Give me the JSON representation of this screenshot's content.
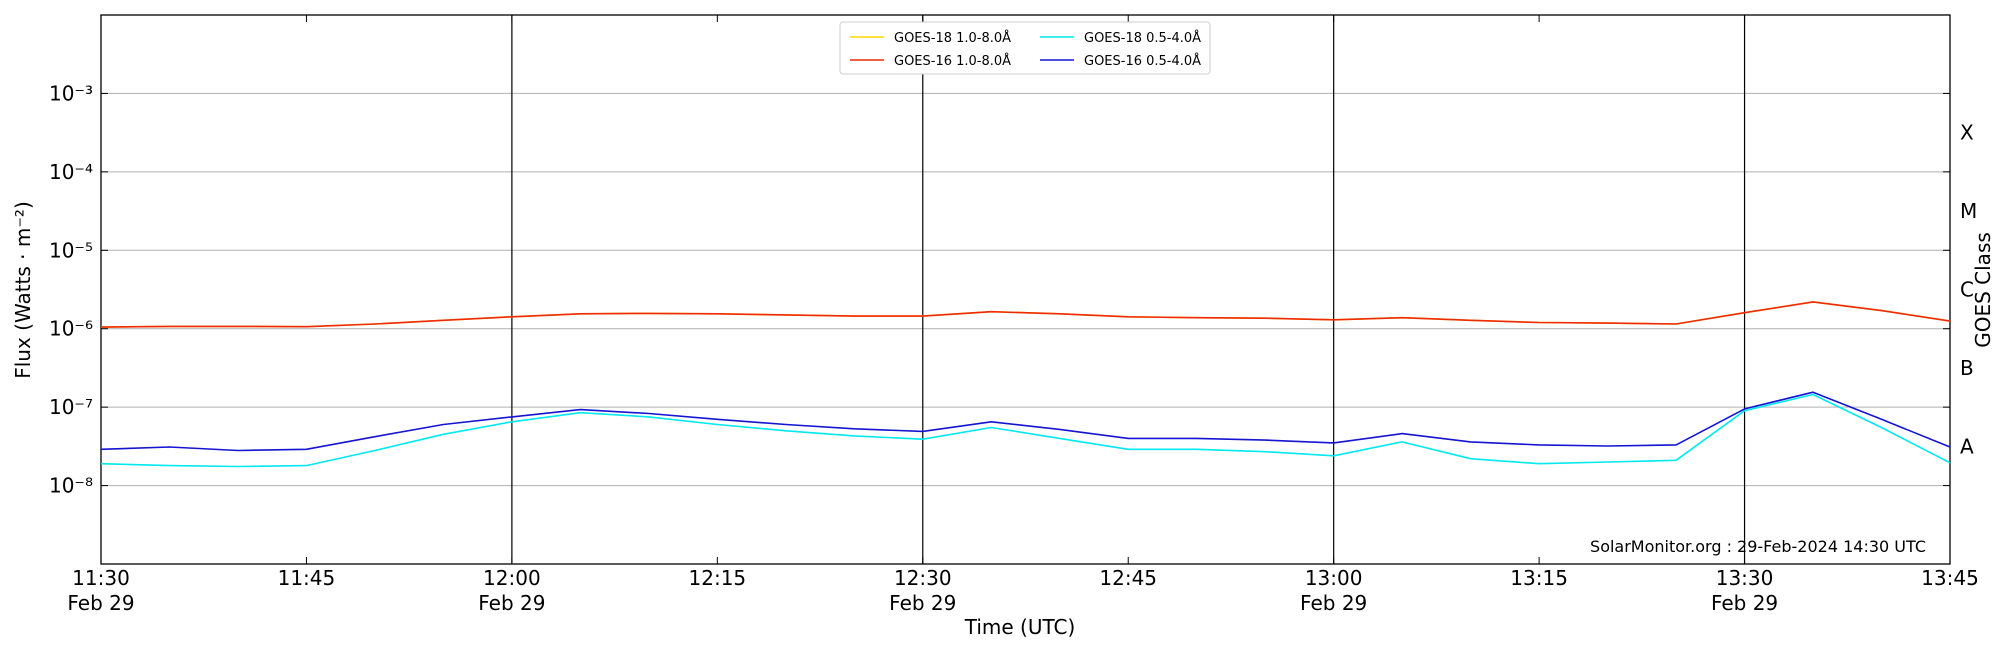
{
  "chart_data": {
    "type": "line",
    "xlabel": "Time (UTC)",
    "ylabel": "Flux (Watts · m⁻²)",
    "y2label": "GOES Class",
    "annotation": "SolarMonitor.org : 29-Feb-2024 14:30 UTC",
    "log_y": true,
    "grid": true,
    "legend": "upper center",
    "x": [
      "11:30",
      "11:35",
      "11:40",
      "11:45",
      "11:50",
      "11:55",
      "12:00",
      "12:05",
      "12:10",
      "12:15",
      "12:20",
      "12:25",
      "12:30",
      "12:35",
      "12:40",
      "12:45",
      "12:50",
      "12:55",
      "13:00",
      "13:05",
      "13:10",
      "13:15",
      "13:20",
      "13:25",
      "13:30",
      "13:35",
      "13:40",
      "13:45"
    ],
    "xlim": [
      "11:30",
      "13:45"
    ],
    "xticks": [
      {
        "value": "11:30",
        "label": "11:30\nFeb 29"
      },
      "11:45",
      {
        "value": "12:00",
        "label": "12:00\nFeb 29"
      },
      "12:15",
      {
        "value": "12:30",
        "label": "12:30\nFeb 29"
      },
      "12:45",
      {
        "value": "13:00",
        "label": "13:00\nFeb 29"
      },
      "13:15",
      {
        "value": "13:30",
        "label": "13:30\nFeb 29"
      },
      "13:45"
    ],
    "vlines": [
      "12:00",
      "12:30",
      "13:00",
      "13:30"
    ],
    "ylim": [
      1e-09,
      0.01
    ],
    "yticks": [
      {
        "value": 0.001,
        "label": "10⁻³"
      },
      {
        "value": 0.0001,
        "label": "10⁻⁴"
      },
      {
        "value": 1e-05,
        "label": "10⁻⁵"
      },
      {
        "value": 1e-06,
        "label": "10⁻⁶"
      },
      {
        "value": 1e-07,
        "label": "10⁻⁷"
      },
      {
        "value": 1e-08,
        "label": "10⁻⁸"
      }
    ],
    "y2lim": [
      1e-09,
      0.01
    ],
    "y2ticks": [
      {
        "value": 0.000316,
        "label": "X"
      },
      {
        "value": 3.16e-05,
        "label": "M"
      },
      {
        "value": 3.16e-06,
        "label": "C"
      },
      {
        "value": 3.16e-07,
        "label": "B"
      },
      {
        "value": 3.16e-08,
        "label": "A"
      }
    ],
    "series": [
      {
        "name": "GOES-18 1.0-8.0Å",
        "color": "#ffd700",
        "values": [
          1.05e-06,
          1.07e-06,
          1.07e-06,
          1.06e-06,
          1.15e-06,
          1.28e-06,
          1.42e-06,
          1.55e-06,
          1.57e-06,
          1.55e-06,
          1.5e-06,
          1.45e-06,
          1.45e-06,
          1.65e-06,
          1.55e-06,
          1.42e-06,
          1.38e-06,
          1.36e-06,
          1.3e-06,
          1.38e-06,
          1.28e-06,
          1.2e-06,
          1.18e-06,
          1.15e-06,
          1.6e-06,
          2.2e-06,
          1.7e-06,
          1.25e-06
        ]
      },
      {
        "name": "GOES-16 1.0-8.0Å",
        "color": "#ee2a0a",
        "values": [
          1.05e-06,
          1.07e-06,
          1.07e-06,
          1.06e-06,
          1.15e-06,
          1.28e-06,
          1.42e-06,
          1.55e-06,
          1.57e-06,
          1.55e-06,
          1.5e-06,
          1.45e-06,
          1.45e-06,
          1.65e-06,
          1.55e-06,
          1.42e-06,
          1.38e-06,
          1.36e-06,
          1.3e-06,
          1.38e-06,
          1.28e-06,
          1.2e-06,
          1.18e-06,
          1.15e-06,
          1.6e-06,
          2.2e-06,
          1.7e-06,
          1.25e-06
        ]
      },
      {
        "name": "GOES-18 0.5-4.0Å",
        "color": "#00e8f0",
        "values": [
          1.9e-08,
          1.8e-08,
          1.75e-08,
          1.8e-08,
          2.8e-08,
          4.5e-08,
          6.5e-08,
          8.5e-08,
          7.5e-08,
          6e-08,
          5e-08,
          4.3e-08,
          3.9e-08,
          5.5e-08,
          4e-08,
          2.9e-08,
          2.9e-08,
          2.7e-08,
          2.4e-08,
          3.6e-08,
          2.2e-08,
          1.9e-08,
          2e-08,
          2.1e-08,
          9e-08,
          1.45e-07,
          5.5e-08,
          1.95e-08
        ]
      },
      {
        "name": "GOES-16 0.5-4.0Å",
        "color": "#1414d2",
        "values": [
          2.9e-08,
          3.1e-08,
          2.8e-08,
          2.9e-08,
          4.2e-08,
          6e-08,
          7.5e-08,
          9.3e-08,
          8.3e-08,
          7e-08,
          6e-08,
          5.3e-08,
          4.9e-08,
          6.5e-08,
          5.2e-08,
          4e-08,
          4e-08,
          3.8e-08,
          3.5e-08,
          4.6e-08,
          3.6e-08,
          3.3e-08,
          3.2e-08,
          3.3e-08,
          9.5e-08,
          1.55e-07,
          7e-08,
          3.1e-08
        ]
      }
    ]
  }
}
